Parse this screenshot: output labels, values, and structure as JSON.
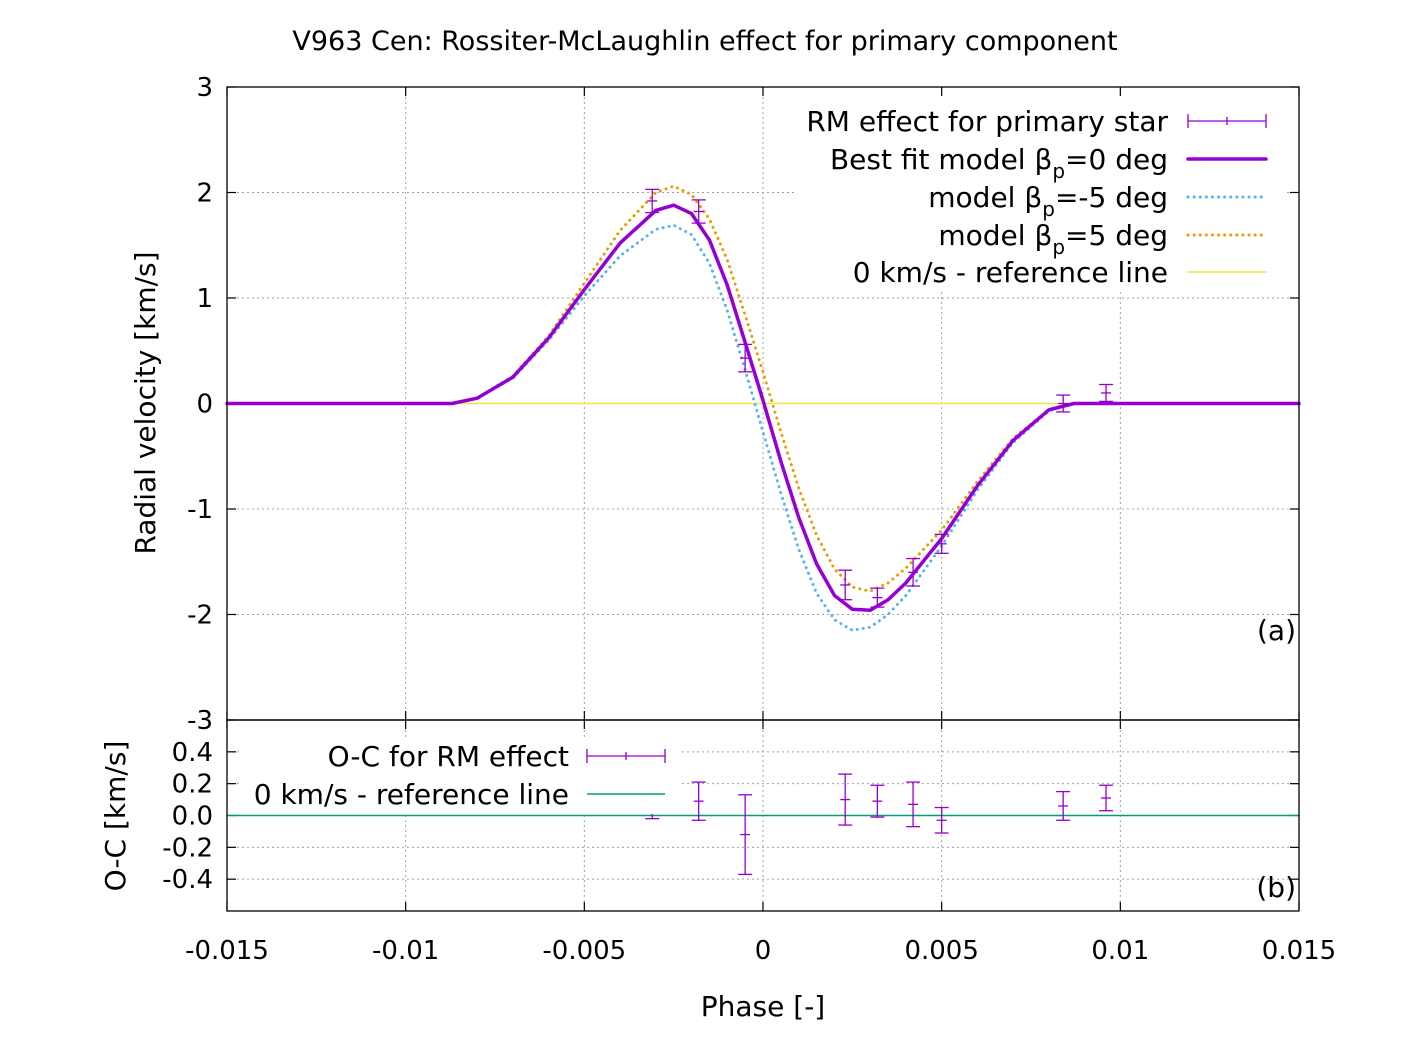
{
  "chart_data": [
    {
      "panel": "a",
      "type": "line",
      "title": "V963 Cen: Rossiter-McLaughlin effect for primary component",
      "xlabel": "Phase [-]",
      "ylabel": "Radial velocity [km/s]",
      "xlim": [
        -0.015,
        0.015
      ],
      "ylim": [
        -3,
        3
      ],
      "xticks": [
        "-0.015",
        "-0.01",
        "-0.005",
        "0",
        "0.005",
        "0.01",
        "0.015"
      ],
      "yticks": [
        "3",
        "2",
        "1",
        "0",
        "-1",
        "-2",
        "-3"
      ],
      "xtick_values": [
        -0.015,
        -0.01,
        -0.005,
        0,
        0.005,
        0.01,
        0.015
      ],
      "ytick_values": [
        3,
        2,
        1,
        0,
        -1,
        -2,
        -3
      ],
      "grid": true,
      "legend_position": "top-right",
      "annotation": "(a)",
      "series": [
        {
          "name": "RM effect for primary star",
          "kind": "errorbars",
          "color": "#9400d3",
          "x": [
            -0.0031,
            -0.0018,
            -0.0005,
            0.0023,
            0.0032,
            0.0042,
            0.005,
            0.0084,
            0.0096
          ],
          "y": [
            1.92,
            1.82,
            0.43,
            -1.72,
            -1.84,
            -1.6,
            -1.33,
            0.0,
            0.1
          ],
          "yerr": [
            0.11,
            0.11,
            0.13,
            0.14,
            0.09,
            0.13,
            0.09,
            0.08,
            0.08
          ]
        },
        {
          "name": "Best fit model β_p=0 deg",
          "legend_parts": [
            "Best fit model β",
            "p",
            "=0 deg"
          ],
          "kind": "line",
          "style": "solid-thick",
          "color": "#9400d3",
          "x": [
            -0.015,
            -0.0087,
            -0.008,
            -0.007,
            -0.006,
            -0.005,
            -0.004,
            -0.003,
            -0.0025,
            -0.002,
            -0.0015,
            -0.001,
            -0.0005,
            0.0,
            0.0005,
            0.001,
            0.0015,
            0.002,
            0.0025,
            0.003,
            0.0035,
            0.004,
            0.005,
            0.006,
            0.007,
            0.008,
            0.0087,
            0.015
          ],
          "y": [
            0,
            0,
            0.05,
            0.25,
            0.62,
            1.08,
            1.52,
            1.83,
            1.88,
            1.8,
            1.55,
            1.12,
            0.58,
            0.03,
            -0.55,
            -1.08,
            -1.52,
            -1.82,
            -1.95,
            -1.96,
            -1.86,
            -1.7,
            -1.28,
            -0.78,
            -0.35,
            -0.06,
            0,
            0
          ]
        },
        {
          "name": "model β_p=-5 deg",
          "legend_parts": [
            "model β",
            "p",
            "=-5 deg"
          ],
          "kind": "line",
          "style": "dotted",
          "color": "#56b4e9",
          "x": [
            -0.015,
            -0.0087,
            -0.008,
            -0.007,
            -0.006,
            -0.005,
            -0.004,
            -0.003,
            -0.0025,
            -0.002,
            -0.0015,
            -0.001,
            -0.0005,
            0.0,
            0.0005,
            0.001,
            0.0015,
            0.002,
            0.0025,
            0.003,
            0.0035,
            0.004,
            0.005,
            0.006,
            0.007,
            0.008,
            0.0087,
            0.015
          ],
          "y": [
            0,
            0,
            0.05,
            0.24,
            0.6,
            1.02,
            1.4,
            1.65,
            1.69,
            1.6,
            1.33,
            0.88,
            0.32,
            -0.27,
            -0.85,
            -1.38,
            -1.8,
            -2.05,
            -2.15,
            -2.12,
            -2.0,
            -1.82,
            -1.35,
            -0.82,
            -0.37,
            -0.07,
            0,
            0
          ]
        },
        {
          "name": "model β_p=5 deg",
          "legend_parts": [
            "model β",
            "p",
            "=5 deg"
          ],
          "kind": "line",
          "style": "dotted",
          "color": "#e69f00",
          "x": [
            -0.015,
            -0.0087,
            -0.008,
            -0.007,
            -0.006,
            -0.005,
            -0.004,
            -0.003,
            -0.0025,
            -0.002,
            -0.0015,
            -0.001,
            -0.0005,
            0.0,
            0.0005,
            0.001,
            0.0015,
            0.002,
            0.0025,
            0.003,
            0.0035,
            0.004,
            0.005,
            0.006,
            0.007,
            0.008,
            0.0087,
            0.015
          ],
          "y": [
            0,
            0,
            0.05,
            0.26,
            0.64,
            1.14,
            1.64,
            2.0,
            2.06,
            1.98,
            1.75,
            1.36,
            0.84,
            0.3,
            -0.27,
            -0.8,
            -1.25,
            -1.57,
            -1.74,
            -1.78,
            -1.7,
            -1.56,
            -1.2,
            -0.74,
            -0.33,
            -0.06,
            0,
            0
          ]
        },
        {
          "name": "0 km/s - reference line",
          "kind": "line",
          "style": "solid-thin",
          "color": "#f0e442",
          "x": [
            -0.015,
            0.015
          ],
          "y": [
            0,
            0
          ]
        }
      ]
    },
    {
      "panel": "b",
      "type": "scatter",
      "xlabel": "Phase [-]",
      "ylabel": "O-C [km/s]",
      "xlim": [
        -0.015,
        0.015
      ],
      "ylim": [
        -0.6,
        0.6
      ],
      "yticks": [
        "0.4",
        "0.2",
        "0.0",
        "-0.2",
        "-0.4"
      ],
      "ytick_values": [
        0.4,
        0.2,
        0.0,
        -0.2,
        -0.4
      ],
      "grid": true,
      "legend_position": "top-left",
      "annotation": "(b)",
      "series": [
        {
          "name": "O-C for RM effect",
          "kind": "errorbars",
          "color": "#9400d3",
          "x": [
            -0.0031,
            -0.0018,
            -0.0005,
            0.0023,
            0.0032,
            0.0042,
            0.005,
            0.0084,
            0.0096
          ],
          "y": [
            0.1,
            0.09,
            -0.12,
            0.1,
            0.09,
            0.07,
            -0.03,
            0.06,
            0.11
          ],
          "yerr": [
            0.12,
            0.12,
            0.25,
            0.16,
            0.1,
            0.14,
            0.08,
            0.09,
            0.08
          ]
        },
        {
          "name": "0 km/s - reference line",
          "kind": "line",
          "style": "solid-thin",
          "color": "#009e73",
          "x": [
            -0.015,
            0.015
          ],
          "y": [
            0,
            0
          ]
        }
      ]
    }
  ]
}
